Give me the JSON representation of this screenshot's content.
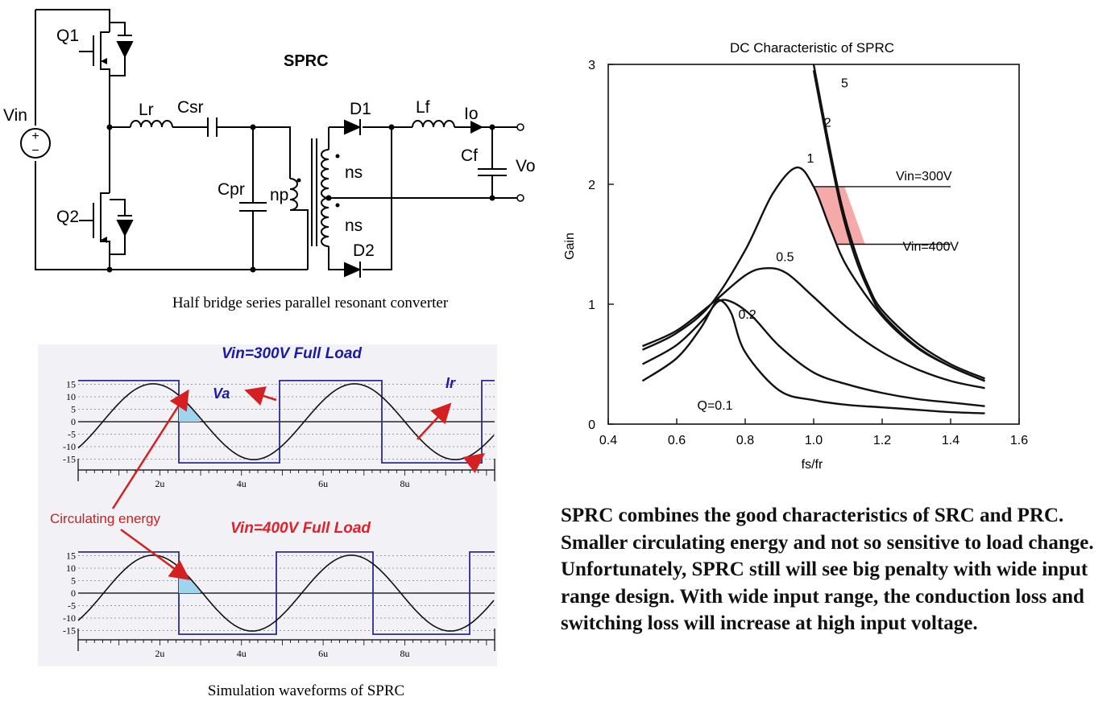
{
  "schematic": {
    "title": "SPRC",
    "caption": "Half bridge series parallel resonant converter",
    "labels": {
      "vin": "Vin",
      "q1": "Q1",
      "q2": "Q2",
      "lr": "Lr",
      "csr": "Csr",
      "cpr": "Cpr",
      "np": "np",
      "ns_top": "ns",
      "ns_bottom": "ns",
      "d1": "D1",
      "d2": "D2",
      "lf": "Lf",
      "io": "Io",
      "cf": "Cf",
      "vo": "Vo",
      "plus": "+",
      "minus": "−"
    }
  },
  "waveforms": {
    "caption": "Simulation waveforms of SPRC",
    "top_title": "Vin=300V Full Load",
    "bottom_title": "Vin=400V Full Load",
    "annotation_va": "Va",
    "annotation_ir": "Ir",
    "annotation_circ": "Circulating energy",
    "y_ticks": [
      "15",
      "10",
      "5",
      "0",
      "-5",
      "-10",
      "-15"
    ],
    "x_ticks": [
      "2u",
      "4u",
      "6u",
      "8u"
    ],
    "colors": {
      "square_wave": "#2b2b9a",
      "title_top": "#1a1aa8",
      "title_bottom": "#e0202a",
      "arrows": "#d42020",
      "energy_fill": "#9fd4ee"
    }
  },
  "dc_chart": {
    "title": "DC Characteristic of SPRC",
    "xlabel": "fs/fr",
    "ylabel": "Gain",
    "x_ticks": [
      "0.4",
      "0.6",
      "0.8",
      "1.0",
      "1.2",
      "1.4",
      "1.6"
    ],
    "y_ticks": [
      "0",
      "1",
      "2",
      "3"
    ],
    "curve_labels": [
      "5",
      "2",
      "1",
      "0.5",
      "0.2",
      "Q=0.1"
    ],
    "vin300_label": "Vin=300V",
    "vin400_label": "Vin=400V",
    "region_color": "#f6a9a9"
  },
  "chart_data": {
    "type": "line",
    "title": "DC Characteristic of SPRC",
    "xlabel": "fs/fr",
    "ylabel": "Gain",
    "xlim": [
      0.4,
      1.6
    ],
    "ylim": [
      0,
      3
    ],
    "grid": false,
    "series": [
      {
        "name": "5",
        "x": [
          1.0,
          1.04,
          1.08,
          1.12,
          1.16,
          1.2,
          1.3,
          1.4,
          1.5
        ],
        "y": [
          3.0,
          2.4,
          1.85,
          1.45,
          1.15,
          0.95,
          0.68,
          0.5,
          0.38
        ]
      },
      {
        "name": "2",
        "x": [
          1.0,
          1.04,
          1.08,
          1.12,
          1.16,
          1.2,
          1.3,
          1.4,
          1.5
        ],
        "y": [
          2.95,
          2.35,
          1.8,
          1.4,
          1.12,
          0.92,
          0.65,
          0.48,
          0.36
        ]
      },
      {
        "name": "1",
        "x": [
          0.5,
          0.6,
          0.7,
          0.8,
          0.88,
          0.95,
          1.0,
          1.05,
          1.1,
          1.2,
          1.3,
          1.4,
          1.5
        ],
        "y": [
          0.62,
          0.76,
          1.0,
          1.45,
          1.92,
          2.14,
          1.98,
          1.62,
          1.3,
          0.9,
          0.64,
          0.48,
          0.36
        ]
      },
      {
        "name": "0.5",
        "x": [
          0.5,
          0.6,
          0.7,
          0.8,
          0.86,
          0.92,
          1.0,
          1.1,
          1.2,
          1.3,
          1.4,
          1.5
        ],
        "y": [
          0.65,
          0.78,
          1.0,
          1.24,
          1.3,
          1.26,
          1.06,
          0.8,
          0.6,
          0.46,
          0.36,
          0.3
        ]
      },
      {
        "name": "0.2",
        "x": [
          0.5,
          0.6,
          0.68,
          0.72,
          0.76,
          0.82,
          0.9,
          1.0,
          1.1,
          1.2,
          1.3,
          1.4,
          1.5
        ],
        "y": [
          0.5,
          0.66,
          0.88,
          1.02,
          1.02,
          0.9,
          0.65,
          0.43,
          0.33,
          0.26,
          0.21,
          0.18,
          0.15
        ]
      },
      {
        "name": "Q=0.1",
        "x": [
          0.5,
          0.6,
          0.67,
          0.71,
          0.73,
          0.76,
          0.8,
          0.9,
          1.0,
          1.1,
          1.2,
          1.3,
          1.4,
          1.5
        ],
        "y": [
          0.36,
          0.55,
          0.8,
          1.0,
          1.03,
          0.92,
          0.6,
          0.28,
          0.2,
          0.16,
          0.14,
          0.12,
          0.1,
          0.09
        ]
      }
    ],
    "annotations": [
      {
        "text": "Vin=300V",
        "y": 1.98
      },
      {
        "text": "Vin=400V",
        "y": 1.5
      }
    ]
  },
  "summary": {
    "text": "SPRC combines the good characteristics of SRC and PRC. Smaller circulating energy and not so sensitive to load change. Unfortunately, SPRC still will see big penalty with wide input range design. With wide input range, the conduction loss and switching loss will increase at high input voltage."
  }
}
